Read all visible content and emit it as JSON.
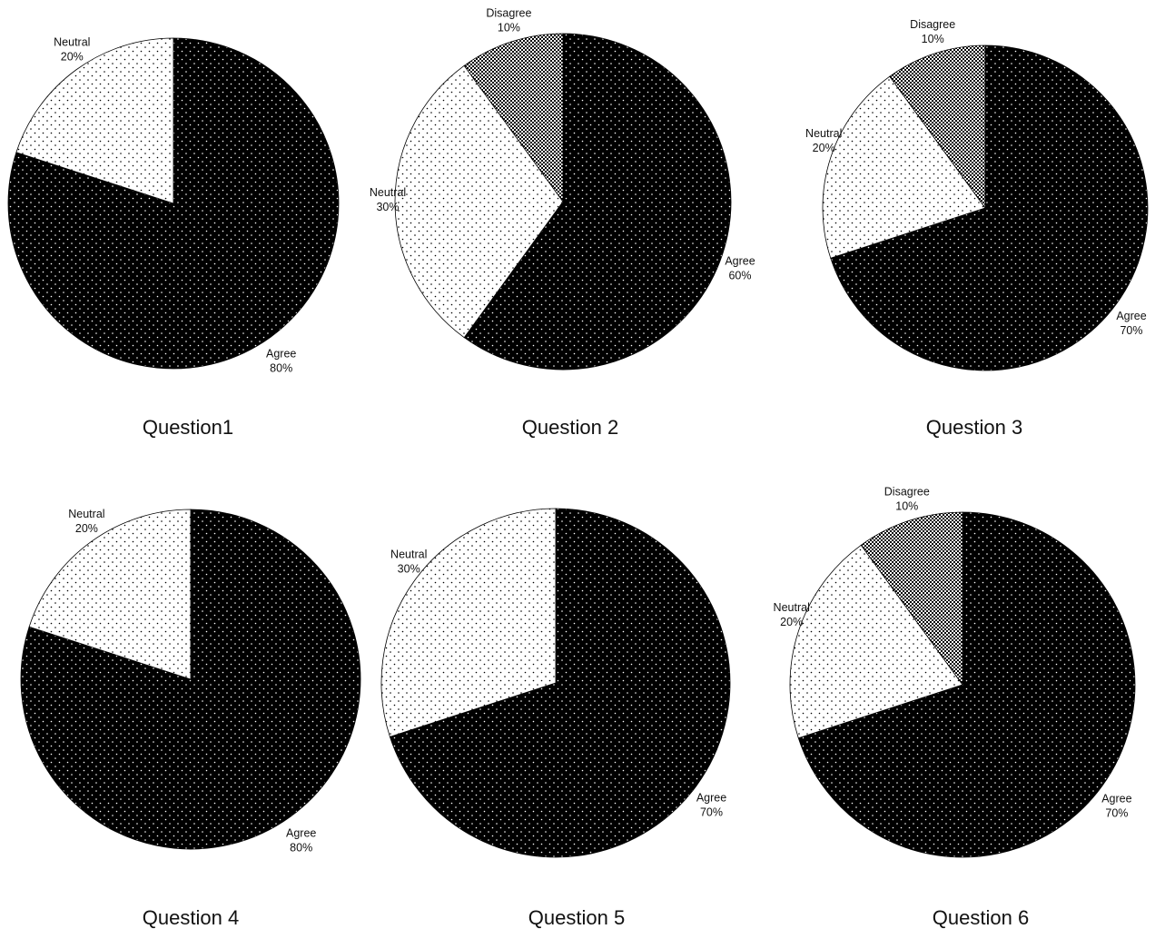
{
  "chart_data": [
    {
      "type": "pie",
      "title": "Question1",
      "slices": [
        {
          "label": "Agree",
          "value": 80,
          "value_label": "80%",
          "pattern": "dense"
        },
        {
          "label": "Neutral",
          "value": 20,
          "value_label": "20%",
          "pattern": "light"
        }
      ]
    },
    {
      "type": "pie",
      "title": "Question 2",
      "slices": [
        {
          "label": "Agree",
          "value": 60,
          "value_label": "60%",
          "pattern": "dense"
        },
        {
          "label": "Neutral",
          "value": 30,
          "value_label": "30%",
          "pattern": "light"
        },
        {
          "label": "Disagree",
          "value": 10,
          "value_label": "10%",
          "pattern": "mid"
        }
      ]
    },
    {
      "type": "pie",
      "title": "Question 3",
      "slices": [
        {
          "label": "Agree",
          "value": 70,
          "value_label": "70%",
          "pattern": "dense"
        },
        {
          "label": "Neutral",
          "value": 20,
          "value_label": "20%",
          "pattern": "light"
        },
        {
          "label": "Disagree",
          "value": 10,
          "value_label": "10%",
          "pattern": "mid"
        }
      ]
    },
    {
      "type": "pie",
      "title": "Question 4",
      "slices": [
        {
          "label": "Agree",
          "value": 80,
          "value_label": "80%",
          "pattern": "dense"
        },
        {
          "label": "Neutral",
          "value": 20,
          "value_label": "20%",
          "pattern": "light"
        }
      ]
    },
    {
      "type": "pie",
      "title": "Question 5",
      "slices": [
        {
          "label": "Agree",
          "value": 70,
          "value_label": "70%",
          "pattern": "dense"
        },
        {
          "label": "Neutral",
          "value": 30,
          "value_label": "30%",
          "pattern": "light"
        }
      ]
    },
    {
      "type": "pie",
      "title": "Question 6",
      "slices": [
        {
          "label": "Agree",
          "value": 70,
          "value_label": "70%",
          "pattern": "dense"
        },
        {
          "label": "Neutral",
          "value": 20,
          "value_label": "20%",
          "pattern": "light"
        },
        {
          "label": "Disagree",
          "value": 10,
          "value_label": "10%",
          "pattern": "mid"
        }
      ]
    }
  ]
}
